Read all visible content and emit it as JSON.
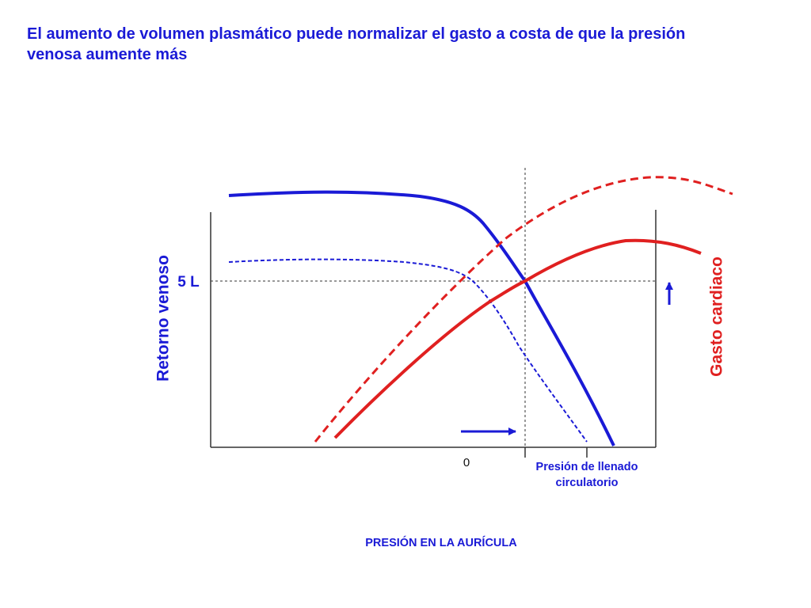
{
  "slide": {
    "title": "El aumento de volumen plasmático puede normalizar el gasto a costa de que la presión venosa aumente más"
  },
  "figure": {
    "left_axis_label": "Retorno venoso",
    "right_axis_label": "Gasto cardiaco",
    "y_tick_label": "5 L",
    "x_zero_label": "0",
    "x_marker_label_line1": "Presión de llenado",
    "x_marker_label_line2": "circulatorio",
    "x_axis_title": "PRESIÓN EN LA AURÍCULA",
    "curves": [
      {
        "name": "retorno-venoso-aumentado",
        "color": "#1a1ad6",
        "style": "solid"
      },
      {
        "name": "retorno-venoso-original",
        "color": "#1a1ad6",
        "style": "dashed"
      },
      {
        "name": "gasto-cardiaco-original",
        "color": "#e02020",
        "style": "solid"
      },
      {
        "name": "gasto-cardiaco-aumentado",
        "color": "#e02020",
        "style": "dashed"
      }
    ],
    "arrows": [
      {
        "name": "right-shift-arrow",
        "color": "#1a1ad6",
        "direction": "right"
      },
      {
        "name": "up-shift-arrow",
        "color": "#1a1ad6",
        "direction": "up"
      }
    ],
    "colors": {
      "blue": "#1a1ad6",
      "red": "#e02020",
      "axis": "#333333"
    }
  }
}
